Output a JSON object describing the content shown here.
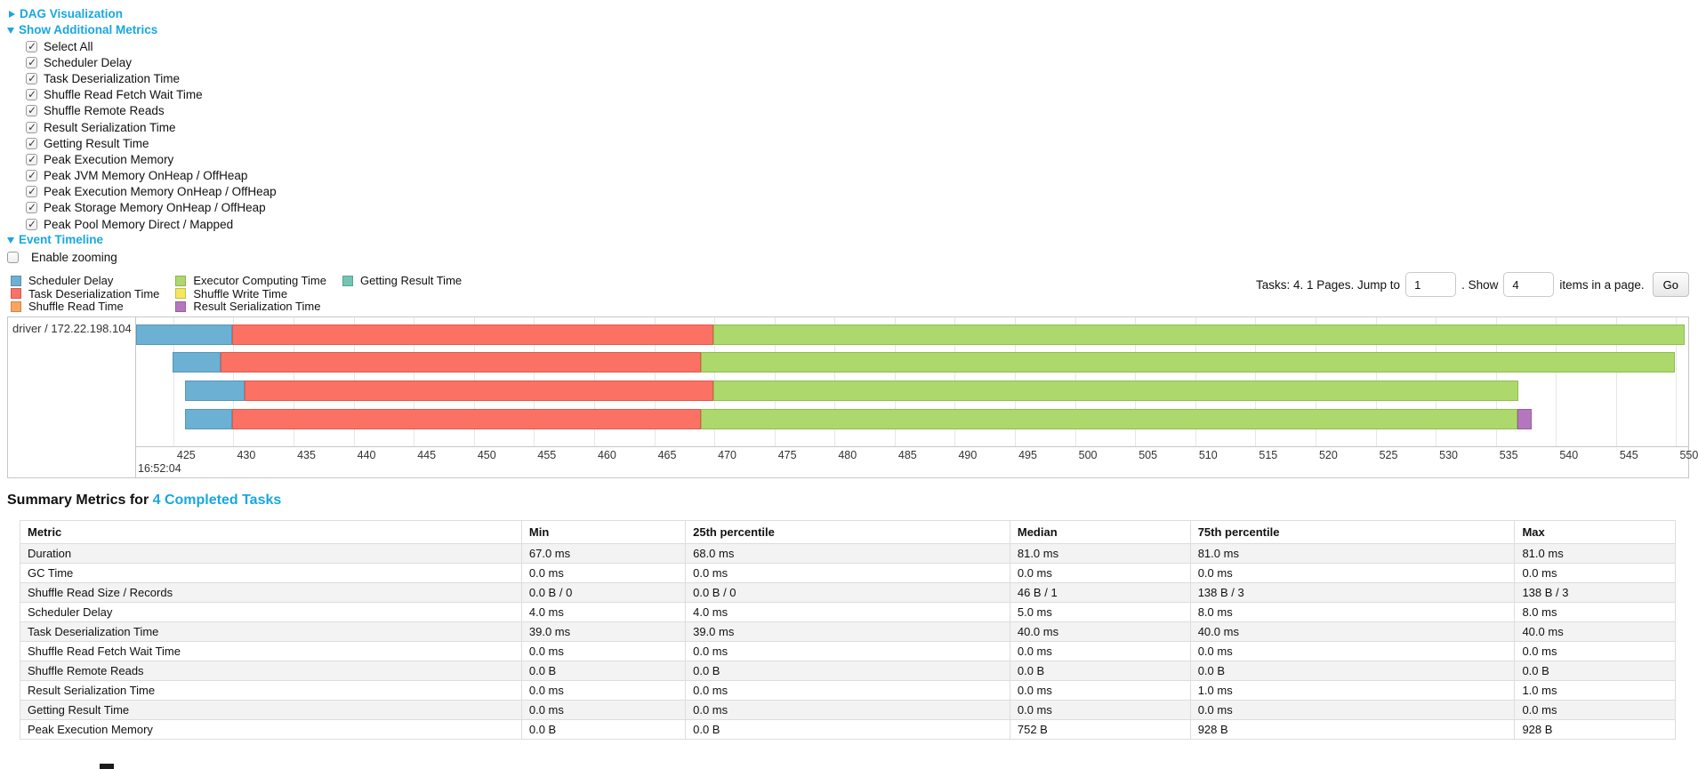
{
  "controls": {
    "dag_visualization_label": "DAG Visualization",
    "show_additional_metrics_label": "Show Additional Metrics",
    "metrics_checkboxes": [
      {
        "label": "Select All",
        "checked": true
      },
      {
        "label": "Scheduler Delay",
        "checked": true
      },
      {
        "label": "Task Deserialization Time",
        "checked": true
      },
      {
        "label": "Shuffle Read Fetch Wait Time",
        "checked": true
      },
      {
        "label": "Shuffle Remote Reads",
        "checked": true
      },
      {
        "label": "Result Serialization Time",
        "checked": true
      },
      {
        "label": "Getting Result Time",
        "checked": true
      },
      {
        "label": "Peak Execution Memory",
        "checked": true
      },
      {
        "label": "Peak JVM Memory OnHeap / OffHeap",
        "checked": true
      },
      {
        "label": "Peak Execution Memory OnHeap / OffHeap",
        "checked": true
      },
      {
        "label": "Peak Storage Memory OnHeap / OffHeap",
        "checked": true
      },
      {
        "label": "Peak Pool Memory Direct / Mapped",
        "checked": true
      }
    ],
    "event_timeline_label": "Event Timeline",
    "enable_zooming": {
      "label": "Enable zooming",
      "checked": false
    }
  },
  "pagination": {
    "prefix": "Tasks: 4. 1 Pages. Jump to",
    "jump_value": "1",
    "mid": ". Show",
    "show_value": "4",
    "suffix": "items in a page.",
    "go_label": "Go"
  },
  "chart_data": {
    "type": "timeline",
    "group_label": "driver / 172.22.198.104",
    "axis": {
      "start": 421.9,
      "end": 551.0,
      "tick_start": 425,
      "tick_step": 5,
      "tick_end": 550,
      "time_label": "16:52:04"
    },
    "colors": {
      "scheduler-delay": {
        "fill": "#6CB0D3",
        "border": "#5896B8"
      },
      "task-deserialization": {
        "fill": "#FB7265",
        "border": "#DE594E"
      },
      "shuffle-read": {
        "fill": "#FCA45E",
        "border": "#DE8940"
      },
      "executor-computing": {
        "fill": "#ADD96C",
        "border": "#8FBE4E"
      },
      "shuffle-write": {
        "fill": "#F5E75C",
        "border": "#D6C83E"
      },
      "result-serialization": {
        "fill": "#B477BE",
        "border": "#985CA4"
      },
      "getting-result": {
        "fill": "#70C6B2",
        "border": "#55AB97"
      }
    },
    "legend_columns": [
      [
        {
          "key": "scheduler-delay",
          "label": "Scheduler Delay"
        },
        {
          "key": "task-deserialization",
          "label": "Task Deserialization Time"
        },
        {
          "key": "shuffle-read",
          "label": "Shuffle Read Time"
        }
      ],
      [
        {
          "key": "executor-computing",
          "label": "Executor Computing Time"
        },
        {
          "key": "shuffle-write",
          "label": "Shuffle Write Time"
        },
        {
          "key": "result-serialization",
          "label": "Result Serialization Time"
        }
      ],
      [
        {
          "key": "getting-result",
          "label": "Getting Result Time"
        }
      ]
    ],
    "tasks": [
      {
        "row": 0,
        "segments": [
          {
            "name": "scheduler-delay",
            "start": 421.9,
            "end": 429.9
          },
          {
            "name": "task-deserialization",
            "start": 429.9,
            "end": 469.9
          },
          {
            "name": "executor-computing",
            "start": 469.9,
            "end": 550.7
          }
        ]
      },
      {
        "row": 1,
        "segments": [
          {
            "name": "scheduler-delay",
            "start": 424.9,
            "end": 428.9
          },
          {
            "name": "task-deserialization",
            "start": 428.9,
            "end": 468.9
          },
          {
            "name": "executor-computing",
            "start": 468.9,
            "end": 549.9
          }
        ]
      },
      {
        "row": 2,
        "segments": [
          {
            "name": "scheduler-delay",
            "start": 426.0,
            "end": 430.9
          },
          {
            "name": "task-deserialization",
            "start": 430.9,
            "end": 469.9
          },
          {
            "name": "executor-computing",
            "start": 469.9,
            "end": 536.9
          }
        ]
      },
      {
        "row": 3,
        "segments": [
          {
            "name": "scheduler-delay",
            "start": 426.0,
            "end": 429.9
          },
          {
            "name": "task-deserialization",
            "start": 429.9,
            "end": 468.9
          },
          {
            "name": "executor-computing",
            "start": 468.9,
            "end": 536.8
          },
          {
            "name": "result-serialization",
            "start": 536.8,
            "end": 538.0
          }
        ]
      }
    ]
  },
  "summary": {
    "title_prefix": "Summary Metrics for",
    "title_link": "4 Completed Tasks",
    "table": {
      "headers": [
        "Metric",
        "Min",
        "25th percentile",
        "Median",
        "75th percentile",
        "Max"
      ],
      "rows": [
        [
          "Duration",
          "67.0 ms",
          "68.0 ms",
          "81.0 ms",
          "81.0 ms",
          "81.0 ms"
        ],
        [
          "GC Time",
          "0.0 ms",
          "0.0 ms",
          "0.0 ms",
          "0.0 ms",
          "0.0 ms"
        ],
        [
          "Shuffle Read Size / Records",
          "0.0 B / 0",
          "0.0 B / 0",
          "46 B / 1",
          "138 B / 3",
          "138 B / 3"
        ],
        [
          "Scheduler Delay",
          "4.0 ms",
          "4.0 ms",
          "5.0 ms",
          "8.0 ms",
          "8.0 ms"
        ],
        [
          "Task Deserialization Time",
          "39.0 ms",
          "39.0 ms",
          "40.0 ms",
          "40.0 ms",
          "40.0 ms"
        ],
        [
          "Shuffle Read Fetch Wait Time",
          "0.0 ms",
          "0.0 ms",
          "0.0 ms",
          "0.0 ms",
          "0.0 ms"
        ],
        [
          "Shuffle Remote Reads",
          "0.0 B",
          "0.0 B",
          "0.0 B",
          "0.0 B",
          "0.0 B"
        ],
        [
          "Result Serialization Time",
          "0.0 ms",
          "0.0 ms",
          "0.0 ms",
          "1.0 ms",
          "1.0 ms"
        ],
        [
          "Getting Result Time",
          "0.0 ms",
          "0.0 ms",
          "0.0 ms",
          "0.0 ms",
          "0.0 ms"
        ],
        [
          "Peak Execution Memory",
          "0.0 B",
          "0.0 B",
          "752 B",
          "928 B",
          "928 B"
        ]
      ]
    }
  }
}
